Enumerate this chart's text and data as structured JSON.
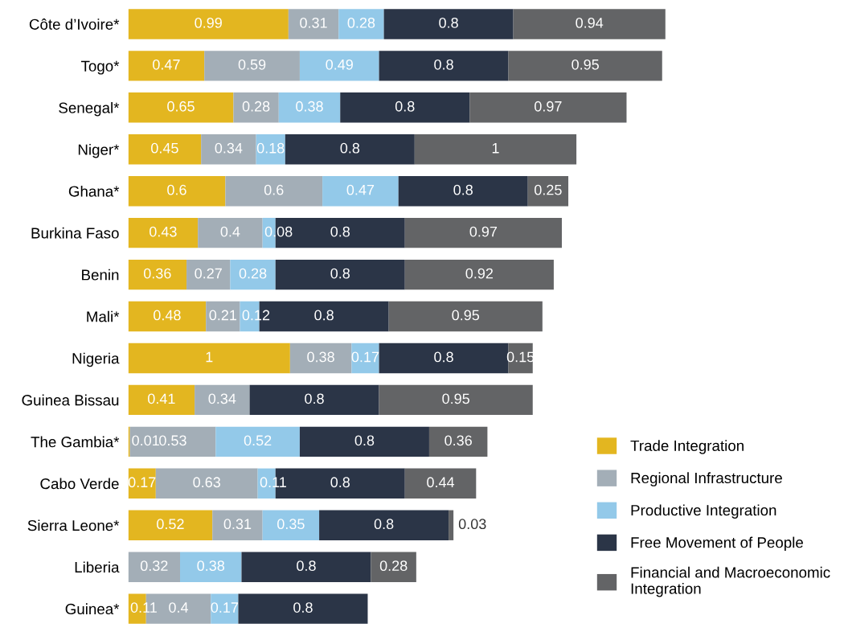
{
  "chart_data": {
    "type": "bar",
    "orientation": "horizontal",
    "stacked": true,
    "data_labels": true,
    "legend": "bottom right",
    "grid": false,
    "categories": [
      "Côte d’Ivoire*",
      "Togo*",
      "Senegal*",
      "Niger*",
      "Ghana*",
      "Burkina Faso",
      "Benin",
      "Mali*",
      "Nigeria",
      "Guinea Bissau",
      "The Gambia*",
      "Cabo Verde",
      "Sierra Leone*",
      "Liberia",
      "Guinea*"
    ],
    "series": [
      {
        "name": "Trade Integration",
        "color": "#e3b620",
        "values": [
          0.99,
          0.47,
          0.65,
          0.45,
          0.6,
          0.43,
          0.36,
          0.48,
          1,
          0.41,
          0.01,
          0.17,
          0.52,
          null,
          0.11
        ]
      },
      {
        "name": "Regional Infrastructure",
        "color": "#a3aeb7",
        "values": [
          0.31,
          0.59,
          0.28,
          0.34,
          0.6,
          0.4,
          0.27,
          0.21,
          0.38,
          0.34,
          0.53,
          0.63,
          0.31,
          0.32,
          0.4
        ]
      },
      {
        "name": "Productive Integration",
        "color": "#93c9e9",
        "values": [
          0.28,
          0.49,
          0.38,
          0.18,
          0.47,
          0.08,
          0.28,
          0.12,
          0.17,
          null,
          0.52,
          0.11,
          0.35,
          0.38,
          0.17
        ]
      },
      {
        "name": "Free Movement of People",
        "color": "#2b3547",
        "values": [
          0.8,
          0.8,
          0.8,
          0.8,
          0.8,
          0.8,
          0.8,
          0.8,
          0.8,
          0.8,
          0.8,
          0.8,
          0.8,
          0.8,
          0.8
        ]
      },
      {
        "name": "Financial and Macroeconomic Integration",
        "color": "#636466",
        "values": [
          0.94,
          0.95,
          0.97,
          1,
          0.25,
          0.97,
          0.92,
          0.95,
          0.15,
          0.95,
          0.36,
          0.44,
          0.03,
          0.28,
          null
        ]
      }
    ]
  }
}
